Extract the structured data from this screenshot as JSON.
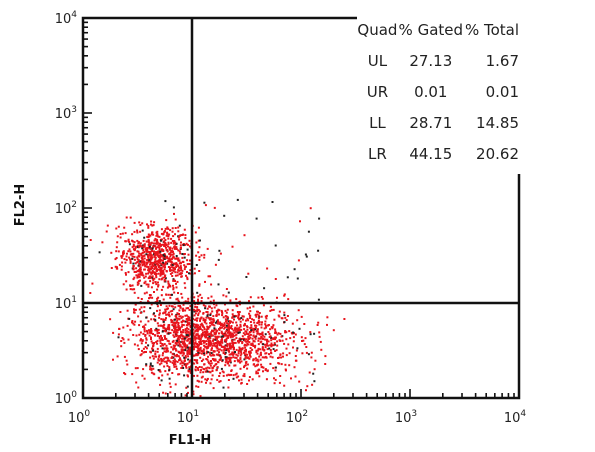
{
  "chart_data": {
    "type": "scatter",
    "xlabel": "FL1-H",
    "ylabel": "FL2-H",
    "x_scale": "log",
    "y_scale": "log",
    "xlim": [
      1,
      10000
    ],
    "ylim": [
      1,
      10000
    ],
    "x_ticks": [
      {
        "base": "10",
        "exp": "0"
      },
      {
        "base": "10",
        "exp": "1"
      },
      {
        "base": "10",
        "exp": "2"
      },
      {
        "base": "10",
        "exp": "3"
      },
      {
        "base": "10",
        "exp": "4"
      }
    ],
    "y_ticks": [
      {
        "base": "10",
        "exp": "0"
      },
      {
        "base": "10",
        "exp": "1"
      },
      {
        "base": "10",
        "exp": "2"
      },
      {
        "base": "10",
        "exp": "3"
      },
      {
        "base": "10",
        "exp": "4"
      }
    ],
    "quadrant_gates": {
      "x": 10,
      "y": 10
    },
    "point_color": "#e8141c",
    "event_clusters": [
      {
        "x_center": 4.5,
        "y_center": 30,
        "x_spread": 0.17,
        "y_spread": 0.17
      },
      {
        "x_center": 8,
        "y_center": 4.5,
        "x_spread": 0.25,
        "y_spread": 0.22
      },
      {
        "x_center": 25,
        "y_center": 4,
        "x_spread": 0.3,
        "y_spread": 0.2
      }
    ],
    "stats_table": {
      "headers": [
        "Quad",
        "% Gated",
        "% Total"
      ],
      "rows": [
        [
          "UL",
          "27.13",
          "1.67"
        ],
        [
          "UR",
          "0.01",
          "0.01"
        ],
        [
          "LL",
          "28.71",
          "14.85"
        ],
        [
          "LR",
          "44.15",
          "20.62"
        ]
      ]
    }
  }
}
